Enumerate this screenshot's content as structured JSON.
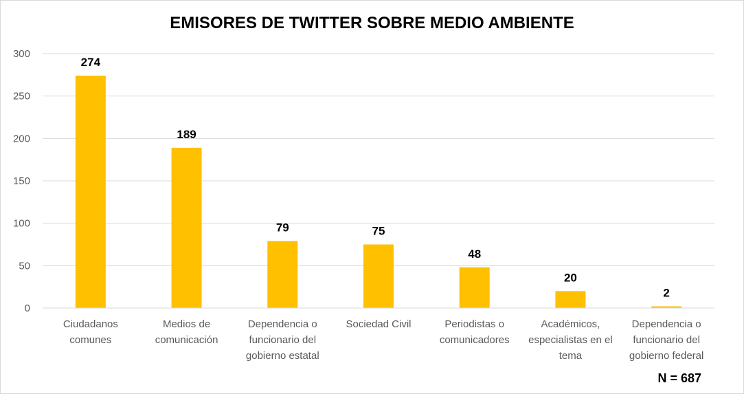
{
  "chart_data": {
    "type": "bar",
    "title": "EMISORES DE TWITTER SOBRE MEDIO AMBIENTE",
    "categories": [
      "Ciudadanos\ncomunes",
      "Medios de\ncomunicación",
      "Dependencia o\nfuncionario del\ngobierno estatal",
      "Sociedad Civil",
      "Periodistas o\ncomunicadores",
      "Académicos,\nespecialistas en el\ntema",
      "Dependencia o\nfuncionario del\ngobierno federal"
    ],
    "values": [
      274,
      189,
      79,
      75,
      48,
      20,
      2
    ],
    "ylim": [
      0,
      300
    ],
    "yticks": [
      0,
      50,
      100,
      150,
      200,
      250,
      300
    ],
    "grid": true,
    "bar_color": "#FFC000",
    "annotation": "N = 687",
    "xlabel": "",
    "ylabel": ""
  }
}
